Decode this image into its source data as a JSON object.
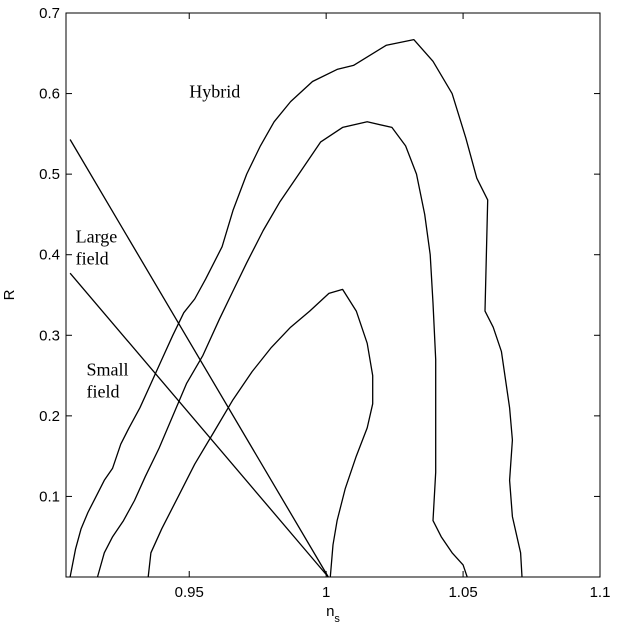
{
  "chart_data": {
    "type": "line",
    "title": "",
    "xlabel": "n_s",
    "ylabel": "R",
    "xlim": [
      0.905,
      1.1
    ],
    "ylim": [
      0,
      0.7
    ],
    "grid": false,
    "x_ticks": [
      0.95,
      1,
      1.05,
      1.1
    ],
    "x_tick_labels": [
      "0.95",
      "1",
      "1.05",
      "1.1"
    ],
    "y_ticks": [
      0.1,
      0.2,
      0.3,
      0.4,
      0.5,
      0.6,
      0.7
    ],
    "y_tick_labels": [
      "0.1",
      "0.2",
      "0.3",
      "0.4",
      "0.5",
      "0.6",
      "0.7"
    ],
    "region_labels": [
      {
        "lines": [
          "Hybrid"
        ],
        "x": 0.95,
        "y": 0.595
      },
      {
        "lines": [
          "Large",
          "field"
        ],
        "x": 0.9085,
        "y": 0.415
      },
      {
        "lines": [
          "Small",
          "field"
        ],
        "x": 0.9125,
        "y": 0.25
      }
    ],
    "series": [
      {
        "points": [
          [
            0.9065,
            0.0
          ],
          [
            0.9085,
            0.035
          ],
          [
            0.9105,
            0.06
          ],
          [
            0.913,
            0.08
          ],
          [
            0.916,
            0.1
          ],
          [
            0.919,
            0.12
          ],
          [
            0.922,
            0.135
          ],
          [
            0.925,
            0.165
          ],
          [
            0.928,
            0.185
          ],
          [
            0.932,
            0.21
          ],
          [
            0.936,
            0.24
          ],
          [
            0.94,
            0.27
          ],
          [
            0.944,
            0.3
          ],
          [
            0.948,
            0.328
          ],
          [
            0.952,
            0.345
          ],
          [
            0.956,
            0.37
          ],
          [
            0.962,
            0.41
          ],
          [
            0.966,
            0.455
          ],
          [
            0.971,
            0.5
          ],
          [
            0.976,
            0.535
          ],
          [
            0.981,
            0.565
          ],
          [
            0.987,
            0.59
          ],
          [
            0.995,
            0.615
          ],
          [
            1.004,
            0.63
          ],
          [
            1.01,
            0.635
          ],
          [
            1.022,
            0.66
          ],
          [
            1.032,
            0.667
          ],
          [
            1.039,
            0.64
          ],
          [
            1.046,
            0.6
          ],
          [
            1.051,
            0.545
          ],
          [
            1.055,
            0.495
          ],
          [
            1.059,
            0.468
          ],
          [
            1.058,
            0.33
          ],
          [
            1.061,
            0.31
          ],
          [
            1.064,
            0.28
          ],
          [
            1.067,
            0.21
          ],
          [
            1.068,
            0.17
          ],
          [
            1.067,
            0.12
          ],
          [
            1.068,
            0.075
          ],
          [
            1.071,
            0.03
          ],
          [
            1.0715,
            0.0
          ]
        ]
      },
      {
        "points": [
          [
            0.9165,
            0.0
          ],
          [
            0.919,
            0.03
          ],
          [
            0.922,
            0.05
          ],
          [
            0.926,
            0.07
          ],
          [
            0.93,
            0.095
          ],
          [
            0.934,
            0.125
          ],
          [
            0.939,
            0.16
          ],
          [
            0.944,
            0.2
          ],
          [
            0.949,
            0.24
          ],
          [
            0.955,
            0.275
          ],
          [
            0.961,
            0.32
          ],
          [
            0.966,
            0.355
          ],
          [
            0.971,
            0.39
          ],
          [
            0.977,
            0.43
          ],
          [
            0.983,
            0.465
          ],
          [
            0.99,
            0.5
          ],
          [
            0.998,
            0.54
          ],
          [
            1.006,
            0.558
          ],
          [
            1.015,
            0.565
          ],
          [
            1.024,
            0.558
          ],
          [
            1.029,
            0.535
          ],
          [
            1.033,
            0.5
          ],
          [
            1.036,
            0.45
          ],
          [
            1.038,
            0.4
          ],
          [
            1.039,
            0.34
          ],
          [
            1.04,
            0.27
          ],
          [
            1.04,
            0.2
          ],
          [
            1.04,
            0.13
          ],
          [
            1.039,
            0.07
          ],
          [
            1.042,
            0.05
          ],
          [
            1.046,
            0.03
          ],
          [
            1.05,
            0.015
          ],
          [
            1.0515,
            0.0
          ]
        ]
      },
      {
        "points": [
          [
            0.935,
            0.0
          ],
          [
            0.936,
            0.03
          ],
          [
            0.94,
            0.06
          ],
          [
            0.946,
            0.1
          ],
          [
            0.952,
            0.14
          ],
          [
            0.959,
            0.18
          ],
          [
            0.966,
            0.22
          ],
          [
            0.973,
            0.255
          ],
          [
            0.98,
            0.285
          ],
          [
            0.987,
            0.31
          ],
          [
            0.994,
            0.33
          ],
          [
            1.001,
            0.352
          ],
          [
            1.006,
            0.357
          ],
          [
            1.011,
            0.33
          ],
          [
            1.015,
            0.29
          ],
          [
            1.017,
            0.25
          ],
          [
            1.017,
            0.215
          ],
          [
            1.015,
            0.185
          ],
          [
            1.011,
            0.15
          ],
          [
            1.007,
            0.11
          ],
          [
            1.004,
            0.07
          ],
          [
            1.0025,
            0.04
          ],
          [
            1.0015,
            0.0
          ]
        ]
      },
      {
        "points": [
          [
            0.9065,
            0.543
          ],
          [
            1.0008,
            0.0
          ]
        ]
      },
      {
        "points": [
          [
            0.9065,
            0.377
          ],
          [
            1.0008,
            0.0
          ]
        ]
      }
    ]
  }
}
